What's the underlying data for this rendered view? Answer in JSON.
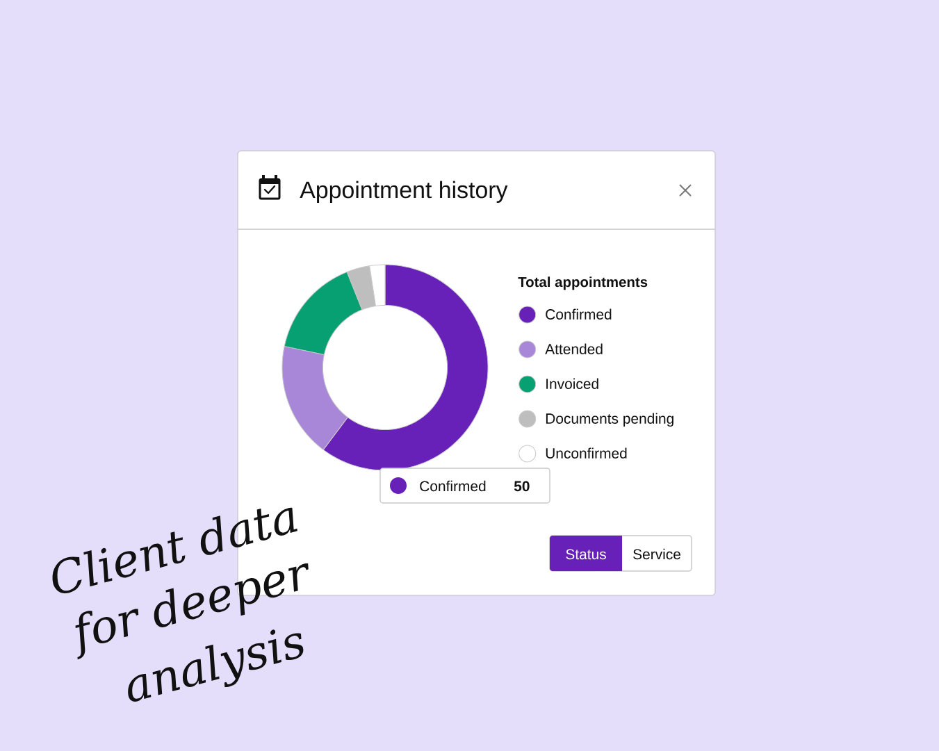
{
  "chart_data": {
    "type": "donut",
    "title": "Appointment history",
    "legend_title": "Total appointments",
    "categories": [
      "Confirmed",
      "Attended",
      "Invoiced",
      "Documents pending",
      "Unconfirmed"
    ],
    "values": [
      50,
      15,
      13,
      3,
      2
    ],
    "colors": [
      "#6720b8",
      "#a886d8",
      "#07a072",
      "#bebebe",
      "#ffffff"
    ],
    "value_labels": [
      "50",
      null,
      null,
      null,
      null
    ],
    "legend": "right",
    "annotations": [
      "Status",
      "Service",
      "Client data",
      "for deeper",
      "analysis"
    ]
  }
}
